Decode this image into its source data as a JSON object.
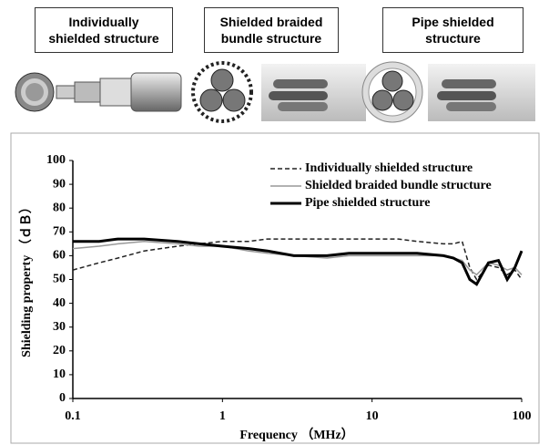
{
  "structures": [
    "Individually shielded structure",
    "Shielded braided bundle structure",
    "Pipe shielded structure"
  ],
  "chart_data": {
    "type": "line",
    "x_label": "Frequency （MHz）",
    "y_label": "Shielding property （ｄＢ）",
    "x": [
      0.1,
      0.15,
      0.2,
      0.3,
      0.5,
      0.7,
      1,
      1.5,
      2,
      3,
      5,
      7,
      10,
      15,
      20,
      30,
      35,
      40,
      45,
      50,
      60,
      70,
      80,
      90,
      100
    ],
    "x_scale": "log",
    "xlim": [
      0.1,
      100
    ],
    "xticks": [
      0.1,
      1,
      10,
      100
    ],
    "ylim": [
      0,
      100
    ],
    "yticks": [
      0,
      10,
      20,
      30,
      40,
      50,
      60,
      70,
      80,
      90,
      100
    ],
    "grid": false,
    "legend": "upper right",
    "series": [
      {
        "name": "Individually shielded structure",
        "color": "#222222",
        "line_style": "dashed",
        "line_width": 1.5,
        "values": [
          54,
          57,
          59,
          62,
          64,
          65,
          66,
          66,
          67,
          67,
          67,
          67,
          67,
          67,
          66,
          65,
          65,
          66,
          55,
          50,
          56,
          55,
          52,
          54,
          50
        ]
      },
      {
        "name": "Shielded braided bundle structure",
        "color": "#999999",
        "line_style": "solid",
        "line_width": 1.5,
        "values": [
          63,
          64,
          65,
          66,
          65,
          64,
          64,
          62,
          61,
          60,
          59,
          60,
          60,
          60,
          60,
          60,
          59,
          58,
          54,
          52,
          57,
          56,
          54,
          55,
          52
        ]
      },
      {
        "name": "Pipe shielded structure",
        "color": "#000000",
        "line_style": "solid",
        "line_width": 3,
        "values": [
          66,
          66,
          67,
          67,
          66,
          65,
          64,
          63,
          62,
          60,
          60,
          61,
          61,
          61,
          61,
          60,
          59,
          57,
          50,
          48,
          57,
          58,
          50,
          55,
          62
        ]
      }
    ]
  }
}
